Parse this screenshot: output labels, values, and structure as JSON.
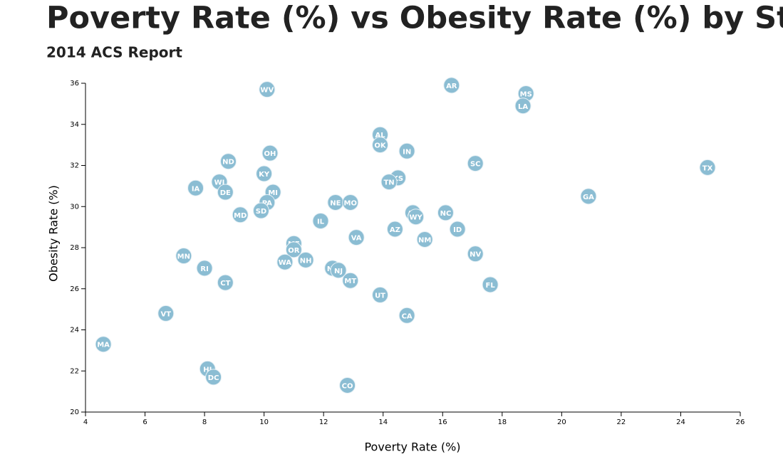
{
  "chart_data": {
    "type": "scatter",
    "title": "Poverty Rate (%) vs Obesity Rate (%) by State",
    "subtitle": "2014 ACS Report",
    "x_label": "Poverty Rate (%)",
    "y_label": "Obesity Rate (%)",
    "color": "#8bbdd3",
    "labels": [
      "WV",
      "AR",
      "MS",
      "LA",
      "AL",
      "OK",
      "IN",
      "OH",
      "ND",
      "SC",
      "TX",
      "KY",
      "KS",
      "TN",
      "WI",
      "IA",
      "MI",
      "DE",
      "GA",
      "NE",
      "MO",
      "PA",
      "SD",
      "AK",
      "WY",
      "NC",
      "MD",
      "IL",
      "AZ",
      "ID",
      "VA",
      "NM",
      "ME",
      "OR",
      "MN",
      "NV",
      "NH",
      "WA",
      "NY",
      "NJ",
      "RI",
      "MT",
      "CT",
      "FL",
      "UT",
      "CA",
      "VT",
      "MA",
      "HI",
      "DC",
      "CO"
    ],
    "x": [
      10.1,
      16.3,
      18.8,
      18.7,
      13.9,
      13.9,
      14.8,
      10.2,
      8.8,
      17.1,
      24.9,
      10.0,
      14.5,
      14.2,
      8.5,
      7.7,
      10.3,
      8.7,
      20.9,
      12.4,
      12.9,
      10.1,
      9.9,
      15.0,
      15.1,
      16.1,
      9.2,
      11.9,
      14.4,
      16.5,
      13.1,
      15.4,
      11.0,
      11.0,
      7.3,
      17.1,
      11.4,
      10.7,
      12.3,
      12.5,
      8.0,
      12.9,
      8.7,
      17.6,
      13.9,
      14.8,
      6.7,
      4.6,
      8.1,
      8.3,
      12.8
    ],
    "values": [
      35.7,
      35.9,
      35.5,
      34.9,
      33.5,
      33.0,
      32.7,
      32.6,
      32.2,
      32.1,
      31.9,
      31.6,
      31.4,
      31.2,
      31.2,
      30.9,
      30.7,
      30.7,
      30.5,
      30.2,
      30.2,
      30.2,
      29.8,
      29.7,
      29.5,
      29.7,
      29.6,
      29.3,
      28.9,
      28.9,
      28.5,
      28.4,
      28.2,
      27.9,
      27.6,
      27.7,
      27.4,
      27.3,
      27.0,
      26.9,
      27.0,
      26.4,
      26.3,
      26.2,
      25.7,
      24.7,
      24.8,
      23.3,
      22.1,
      21.7,
      21.3
    ],
    "xlim": [
      4,
      26
    ],
    "xticks": [
      4,
      6,
      8,
      10,
      12,
      14,
      16,
      18,
      20,
      22,
      24,
      26
    ],
    "ylim": [
      20,
      36
    ],
    "yticks": [
      20,
      22,
      24,
      26,
      28,
      30,
      32,
      34,
      36
    ]
  }
}
